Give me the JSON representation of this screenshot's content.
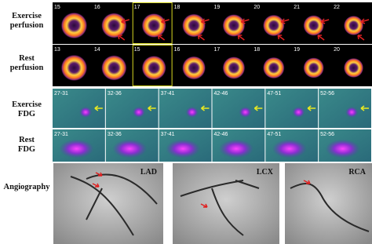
{
  "row_labels": [
    [
      "Exercise",
      "perfusion"
    ],
    [
      "Rest",
      "perfusion"
    ],
    [
      "Exercise",
      "FDG"
    ],
    [
      "Rest",
      "FDG"
    ],
    [
      "Angiography"
    ]
  ],
  "perfusion": [
    {
      "frames": [
        15,
        16,
        17,
        18,
        19,
        20,
        21,
        22
      ]
    },
    {
      "frames": [
        13,
        14,
        15,
        16,
        17,
        18,
        19,
        20
      ]
    }
  ],
  "fdg": [
    {
      "frames": [
        "27-31",
        "32-36",
        "37-41",
        "42-46",
        "47-51",
        "52-56"
      ]
    },
    {
      "frames": [
        "27-31",
        "32-36",
        "37-41",
        "42-46",
        "47-51",
        "52-56"
      ]
    }
  ],
  "angiography": {
    "panels": [
      "LAD",
      "LCX",
      "RCA"
    ]
  }
}
